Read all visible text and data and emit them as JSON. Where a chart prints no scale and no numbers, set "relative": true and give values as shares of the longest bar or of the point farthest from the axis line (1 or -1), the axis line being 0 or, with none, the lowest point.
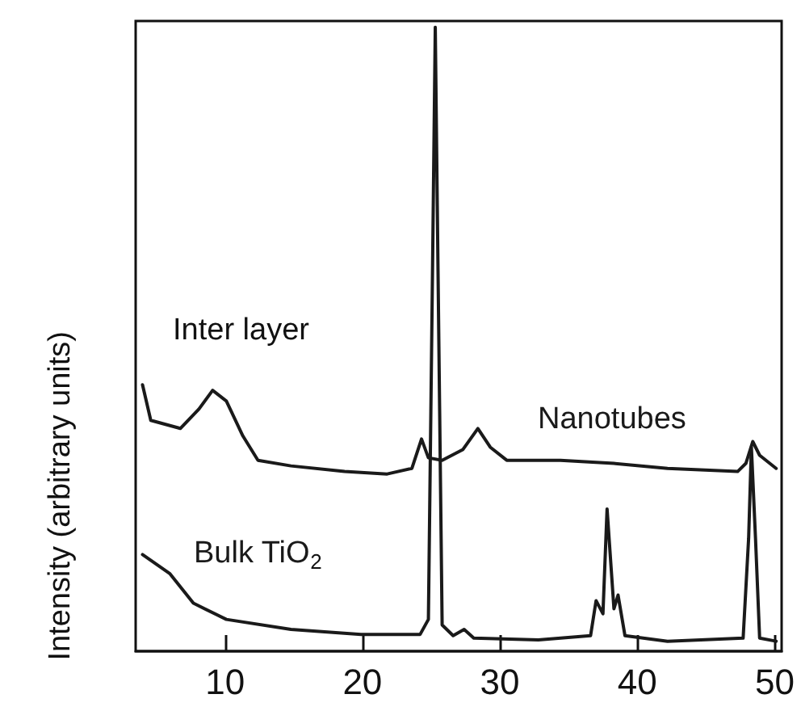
{
  "chart_data": {
    "type": "line",
    "ylabel": "Intensity (arbitrary units)",
    "relative": true,
    "xlim": [
      3.5,
      50.5
    ],
    "xticks": [
      10,
      20,
      30,
      40,
      50
    ],
    "grid": false,
    "marker": "none",
    "line_style": "solid",
    "annotations": [
      "Inter layer"
    ],
    "series": [
      {
        "name": "Nanotubes",
        "color": "#1a1a1a",
        "x": [
          4.0,
          4.6,
          6.75,
          8.1,
          9.1,
          10.1,
          11.3,
          12.4,
          14.8,
          18.7,
          21.8,
          23.6,
          24.3,
          24.8,
          25.8,
          27.3,
          28.4,
          29.3,
          30.5,
          34.4,
          38.3,
          42.2,
          47.3,
          47.9,
          48.4,
          48.9,
          50.1
        ],
        "values": [
          0.427,
          0.37,
          0.357,
          0.388,
          0.418,
          0.401,
          0.345,
          0.306,
          0.297,
          0.288,
          0.284,
          0.293,
          0.34,
          0.31,
          0.306,
          0.323,
          0.357,
          0.327,
          0.306,
          0.306,
          0.301,
          0.293,
          0.288,
          0.301,
          0.336,
          0.314,
          0.293
        ]
      },
      {
        "name": "Bulk TiO$_{2}$",
        "color": "#1a1a1a",
        "x": [
          4.0,
          6.0,
          7.7,
          10.1,
          14.8,
          19.9,
          24.2,
          24.8,
          25.1,
          25.3,
          25.5,
          25.8,
          26.6,
          27.4,
          28.1,
          32.8,
          36.6,
          37.0,
          37.5,
          37.8,
          38.3,
          38.6,
          39.1,
          42.2,
          47.7,
          48.1,
          48.3,
          48.6,
          48.9,
          50.1
        ],
        "values": [
          0.155,
          0.124,
          0.077,
          0.051,
          0.035,
          0.027,
          0.027,
          0.051,
          0.61,
          1.0,
          0.61,
          0.042,
          0.025,
          0.035,
          0.021,
          0.018,
          0.025,
          0.081,
          0.06,
          0.228,
          0.068,
          0.09,
          0.025,
          0.016,
          0.021,
          0.181,
          0.327,
          0.181,
          0.021,
          0.016
        ]
      }
    ]
  }
}
